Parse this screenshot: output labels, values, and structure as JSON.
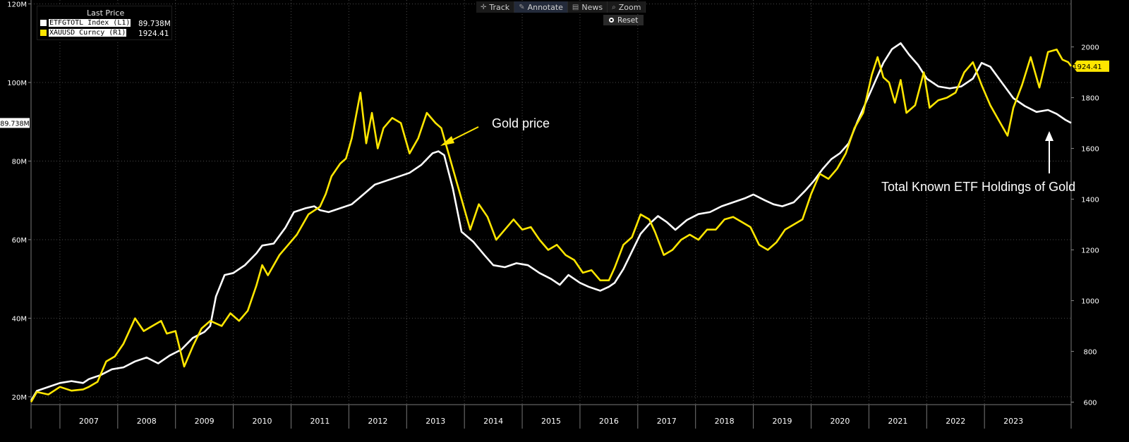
{
  "legend": {
    "header": "Last Price",
    "series": [
      {
        "name": "ETFGTOTL Index  (L1)",
        "value": "89.738M",
        "color": "#ffffff"
      },
      {
        "name": "XAUUSD Curncy  (R1)",
        "value": "1924.41",
        "color": "#ffe600"
      }
    ]
  },
  "toolbar": {
    "items": [
      {
        "icon": "crosshair-icon",
        "label": "Track"
      },
      {
        "icon": "pencil-icon",
        "label": "Annotate"
      },
      {
        "icon": "news-icon",
        "label": "News"
      },
      {
        "icon": "magnifier-icon",
        "label": "Zoom"
      }
    ],
    "reset": "Reset"
  },
  "annotations": {
    "gold": "Gold price",
    "etf": "Total Known ETF Holdings of Gold"
  },
  "colors": {
    "etf": "#ffffff",
    "gold": "#ffe600",
    "background": "#000000",
    "grid": "#555555"
  },
  "chart_data": {
    "type": "line",
    "xlabel": "",
    "ylabel_left": "",
    "ylabel_right": "",
    "x_ticks": [
      "2007",
      "2008",
      "2009",
      "2010",
      "2011",
      "2012",
      "2013",
      "2014",
      "2015",
      "2016",
      "2017",
      "2018",
      "2019",
      "2020",
      "2021",
      "2022",
      "2023"
    ],
    "y_left_ticks": [
      "20M",
      "40M",
      "60M",
      "80M",
      "100M",
      "120M"
    ],
    "y_right_ticks": [
      "600",
      "800",
      "1000",
      "1200",
      "1400",
      "1600",
      "1800",
      "2000"
    ],
    "ylim_left": [
      18,
      121
    ],
    "ylim_right": [
      590,
      2185
    ],
    "xlim": [
      2006.0,
      2024.0
    ],
    "grid": "dotted",
    "legend_position": "top-left",
    "last_value_left": "89.738M",
    "last_value_right": "1924.41",
    "series": [
      {
        "name": "ETFGTOTL Index  (L1)",
        "axis": "left",
        "color": "#ffffff",
        "points": [
          [
            2006.0,
            19.0
          ],
          [
            2006.1,
            21.5
          ],
          [
            2006.3,
            22.5
          ],
          [
            2006.5,
            23.5
          ],
          [
            2006.7,
            24.0
          ],
          [
            2006.9,
            23.5
          ],
          [
            2007.0,
            24.5
          ],
          [
            2007.2,
            25.5
          ],
          [
            2007.4,
            27.0
          ],
          [
            2007.6,
            27.5
          ],
          [
            2007.8,
            29.0
          ],
          [
            2008.0,
            30.0
          ],
          [
            2008.2,
            28.5
          ],
          [
            2008.4,
            30.5
          ],
          [
            2008.6,
            32.0
          ],
          [
            2008.8,
            35.0
          ],
          [
            2009.0,
            36.5
          ],
          [
            2009.1,
            38.0
          ],
          [
            2009.2,
            45.5
          ],
          [
            2009.35,
            51.0
          ],
          [
            2009.5,
            51.5
          ],
          [
            2009.7,
            53.5
          ],
          [
            2009.9,
            56.5
          ],
          [
            2010.0,
            58.5
          ],
          [
            2010.2,
            59.0
          ],
          [
            2010.4,
            63.0
          ],
          [
            2010.55,
            67.0
          ],
          [
            2010.75,
            68.0
          ],
          [
            2010.9,
            68.5
          ],
          [
            2011.0,
            67.5
          ],
          [
            2011.15,
            67.0
          ],
          [
            2011.35,
            68.0
          ],
          [
            2011.55,
            69.0
          ],
          [
            2011.75,
            71.5
          ],
          [
            2011.95,
            74.0
          ],
          [
            2012.15,
            75.0
          ],
          [
            2012.35,
            76.0
          ],
          [
            2012.55,
            77.0
          ],
          [
            2012.75,
            79.0
          ],
          [
            2012.95,
            82.0
          ],
          [
            2013.05,
            82.5
          ],
          [
            2013.15,
            81.5
          ],
          [
            2013.3,
            73.0
          ],
          [
            2013.45,
            62.0
          ],
          [
            2013.65,
            59.5
          ],
          [
            2013.85,
            56.0
          ],
          [
            2014.0,
            53.5
          ],
          [
            2014.2,
            53.0
          ],
          [
            2014.4,
            54.0
          ],
          [
            2014.6,
            53.5
          ],
          [
            2014.8,
            51.5
          ],
          [
            2015.0,
            50.0
          ],
          [
            2015.15,
            48.5
          ],
          [
            2015.3,
            51.0
          ],
          [
            2015.5,
            49.0
          ],
          [
            2015.65,
            48.0
          ],
          [
            2015.85,
            47.0
          ],
          [
            2016.0,
            48.0
          ],
          [
            2016.1,
            49.0
          ],
          [
            2016.25,
            52.5
          ],
          [
            2016.4,
            57.0
          ],
          [
            2016.55,
            61.5
          ],
          [
            2016.7,
            64.0
          ],
          [
            2016.85,
            66.0
          ],
          [
            2017.0,
            64.5
          ],
          [
            2017.15,
            62.5
          ],
          [
            2017.35,
            65.0
          ],
          [
            2017.55,
            66.5
          ],
          [
            2017.75,
            67.0
          ],
          [
            2017.95,
            68.5
          ],
          [
            2018.15,
            69.5
          ],
          [
            2018.35,
            70.5
          ],
          [
            2018.5,
            71.5
          ],
          [
            2018.7,
            70.0
          ],
          [
            2018.85,
            69.0
          ],
          [
            2019.0,
            68.5
          ],
          [
            2019.2,
            69.5
          ],
          [
            2019.4,
            72.5
          ],
          [
            2019.55,
            75.0
          ],
          [
            2019.7,
            78.0
          ],
          [
            2019.85,
            80.5
          ],
          [
            2020.0,
            82.0
          ],
          [
            2020.15,
            84.5
          ],
          [
            2020.3,
            90.0
          ],
          [
            2020.45,
            95.0
          ],
          [
            2020.6,
            100.0
          ],
          [
            2020.75,
            105.0
          ],
          [
            2020.9,
            108.5
          ],
          [
            2021.05,
            110.0
          ],
          [
            2021.2,
            107.0
          ],
          [
            2021.35,
            104.5
          ],
          [
            2021.5,
            101.0
          ],
          [
            2021.7,
            99.0
          ],
          [
            2021.9,
            98.5
          ],
          [
            2022.1,
            99.0
          ],
          [
            2022.3,
            101.0
          ],
          [
            2022.45,
            105.0
          ],
          [
            2022.6,
            104.0
          ],
          [
            2022.8,
            100.0
          ],
          [
            2023.0,
            96.0
          ],
          [
            2023.2,
            94.0
          ],
          [
            2023.4,
            92.5
          ],
          [
            2023.6,
            93.0
          ],
          [
            2023.75,
            92.0
          ],
          [
            2023.9,
            90.5
          ],
          [
            2024.0,
            89.7
          ]
        ]
      },
      {
        "name": "XAUUSD Curncy  (R1)",
        "axis": "right",
        "color": "#ffe600",
        "points": [
          [
            2006.0,
            600
          ],
          [
            2006.1,
            640
          ],
          [
            2006.3,
            630
          ],
          [
            2006.5,
            660
          ],
          [
            2006.7,
            645
          ],
          [
            2006.9,
            650
          ],
          [
            2007.0,
            660
          ],
          [
            2007.15,
            680
          ],
          [
            2007.3,
            760
          ],
          [
            2007.45,
            780
          ],
          [
            2007.6,
            830
          ],
          [
            2007.8,
            930
          ],
          [
            2007.95,
            880
          ],
          [
            2008.1,
            900
          ],
          [
            2008.25,
            920
          ],
          [
            2008.35,
            870
          ],
          [
            2008.5,
            880
          ],
          [
            2008.65,
            740
          ],
          [
            2008.8,
            820
          ],
          [
            2008.95,
            890
          ],
          [
            2009.1,
            920
          ],
          [
            2009.3,
            900
          ],
          [
            2009.45,
            950
          ],
          [
            2009.6,
            920
          ],
          [
            2009.75,
            960
          ],
          [
            2009.9,
            1060
          ],
          [
            2010.0,
            1140
          ],
          [
            2010.1,
            1100
          ],
          [
            2010.3,
            1180
          ],
          [
            2010.45,
            1220
          ],
          [
            2010.6,
            1260
          ],
          [
            2010.8,
            1340
          ],
          [
            2011.0,
            1370
          ],
          [
            2011.1,
            1420
          ],
          [
            2011.2,
            1490
          ],
          [
            2011.35,
            1540
          ],
          [
            2011.45,
            1560
          ],
          [
            2011.55,
            1640
          ],
          [
            2011.7,
            1820
          ],
          [
            2011.8,
            1620
          ],
          [
            2011.9,
            1740
          ],
          [
            2012.0,
            1600
          ],
          [
            2012.1,
            1680
          ],
          [
            2012.25,
            1720
          ],
          [
            2012.4,
            1700
          ],
          [
            2012.55,
            1580
          ],
          [
            2012.7,
            1640
          ],
          [
            2012.85,
            1740
          ],
          [
            2013.0,
            1700
          ],
          [
            2013.1,
            1680
          ],
          [
            2013.2,
            1600
          ],
          [
            2013.35,
            1480
          ],
          [
            2013.45,
            1400
          ],
          [
            2013.6,
            1280
          ],
          [
            2013.75,
            1380
          ],
          [
            2013.9,
            1330
          ],
          [
            2014.05,
            1240
          ],
          [
            2014.2,
            1280
          ],
          [
            2014.35,
            1320
          ],
          [
            2014.5,
            1280
          ],
          [
            2014.65,
            1290
          ],
          [
            2014.8,
            1240
          ],
          [
            2014.95,
            1200
          ],
          [
            2015.1,
            1220
          ],
          [
            2015.25,
            1180
          ],
          [
            2015.4,
            1160
          ],
          [
            2015.55,
            1110
          ],
          [
            2015.7,
            1120
          ],
          [
            2015.85,
            1080
          ],
          [
            2016.0,
            1080
          ],
          [
            2016.1,
            1130
          ],
          [
            2016.25,
            1220
          ],
          [
            2016.4,
            1250
          ],
          [
            2016.55,
            1340
          ],
          [
            2016.7,
            1320
          ],
          [
            2016.8,
            1270
          ],
          [
            2016.95,
            1180
          ],
          [
            2017.1,
            1200
          ],
          [
            2017.25,
            1240
          ],
          [
            2017.4,
            1260
          ],
          [
            2017.55,
            1240
          ],
          [
            2017.7,
            1280
          ],
          [
            2017.85,
            1280
          ],
          [
            2018.0,
            1320
          ],
          [
            2018.15,
            1330
          ],
          [
            2018.3,
            1310
          ],
          [
            2018.45,
            1290
          ],
          [
            2018.6,
            1220
          ],
          [
            2018.75,
            1200
          ],
          [
            2018.9,
            1230
          ],
          [
            2019.05,
            1280
          ],
          [
            2019.2,
            1300
          ],
          [
            2019.35,
            1320
          ],
          [
            2019.5,
            1420
          ],
          [
            2019.65,
            1500
          ],
          [
            2019.8,
            1480
          ],
          [
            2019.95,
            1520
          ],
          [
            2020.1,
            1580
          ],
          [
            2020.25,
            1680
          ],
          [
            2020.4,
            1740
          ],
          [
            2020.55,
            1890
          ],
          [
            2020.65,
            1960
          ],
          [
            2020.75,
            1880
          ],
          [
            2020.85,
            1860
          ],
          [
            2020.95,
            1780
          ],
          [
            2021.05,
            1870
          ],
          [
            2021.15,
            1740
          ],
          [
            2021.3,
            1770
          ],
          [
            2021.45,
            1900
          ],
          [
            2021.55,
            1760
          ],
          [
            2021.7,
            1790
          ],
          [
            2021.85,
            1800
          ],
          [
            2022.0,
            1820
          ],
          [
            2022.15,
            1900
          ],
          [
            2022.3,
            1940
          ],
          [
            2022.45,
            1850
          ],
          [
            2022.6,
            1770
          ],
          [
            2022.75,
            1710
          ],
          [
            2022.9,
            1650
          ],
          [
            2023.0,
            1760
          ],
          [
            2023.15,
            1850
          ],
          [
            2023.3,
            1960
          ],
          [
            2023.45,
            1840
          ],
          [
            2023.6,
            1980
          ],
          [
            2023.75,
            1990
          ],
          [
            2023.85,
            1950
          ],
          [
            2023.95,
            1940
          ],
          [
            2024.0,
            1924
          ]
        ]
      }
    ]
  }
}
